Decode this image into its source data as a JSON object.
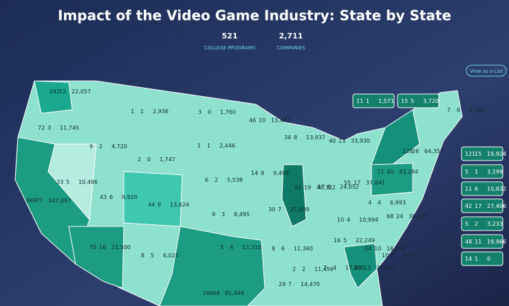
{
  "header": {
    "title": "Impact of the Video Game Industry: State by State",
    "stats": [
      {
        "value": "521",
        "label": "COLLEGE PROGRAMS"
      },
      {
        "value": "2,711",
        "label": "COMPANIES"
      }
    ],
    "button": "View as a List"
  },
  "states": [
    [
      "242",
      "12",
      "22,057"
    ],
    [
      "72",
      "3",
      "11,745"
    ],
    [
      "889",
      "77",
      "147,097"
    ],
    [
      "33",
      "5",
      "10,496"
    ],
    [
      "9",
      "2",
      "4,720"
    ],
    [
      "1",
      "1",
      "2,936"
    ],
    [
      "2",
      "0",
      "1,747"
    ],
    [
      "43",
      "6",
      "9,920"
    ],
    [
      "75",
      "16",
      "21,500"
    ],
    [
      "44",
      "9",
      "13,624"
    ],
    [
      "8",
      "5",
      "6,025"
    ],
    [
      "3",
      "0",
      "1,760"
    ],
    [
      "1",
      "1",
      "2,446"
    ],
    [
      "6",
      "2",
      "5,538"
    ],
    [
      "9",
      "3",
      "8,495"
    ],
    [
      "5",
      "4",
      "13,310"
    ],
    [
      "266",
      "44",
      "81,449"
    ],
    [
      "46",
      "10",
      "13,477"
    ],
    [
      "14",
      "9",
      "9,499"
    ],
    [
      "30",
      "7",
      "21,609"
    ],
    [
      "8",
      "6",
      "11,360"
    ],
    [
      "29",
      "7",
      "14,470"
    ],
    [
      "34",
      "8",
      "13,937"
    ],
    [
      "91",
      "19",
      "40,322"
    ],
    [
      "40",
      "23",
      "33,930"
    ],
    [
      "17",
      "6",
      "24,052"
    ],
    [
      "55",
      "17",
      "37,641"
    ],
    [
      "10",
      "4",
      "10,994"
    ],
    [
      "16",
      "5",
      "22,249"
    ],
    [
      "2",
      "2",
      "11,456"
    ],
    [
      "7",
      "4",
      "17,100"
    ],
    [
      "83",
      "13",
      "39,495"
    ],
    [
      "10",
      "2",
      "6,993"
    ],
    [
      "24",
      "10",
      "16,746"
    ],
    [
      "68",
      "24",
      "38,305"
    ],
    [
      "4",
      "4",
      "6,993"
    ],
    [
      "72",
      "30",
      "43,284"
    ],
    [
      "228",
      "26",
      "64,357"
    ],
    [
      "7",
      "0",
      "4,394"
    ],
    [
      "11",
      "1",
      "1,571"
    ],
    [
      "15",
      "5",
      "3,720"
    ],
    [
      "121",
      "15",
      "19,924"
    ],
    [
      "5",
      "1",
      "3,199"
    ],
    [
      "11",
      "6",
      "10,832"
    ],
    [
      "42",
      "17",
      "27,406"
    ],
    [
      "5",
      "2",
      "3,233"
    ],
    [
      "48",
      "11",
      "19,966"
    ],
    [
      "14",
      "1",
      "0"
    ]
  ]
}
